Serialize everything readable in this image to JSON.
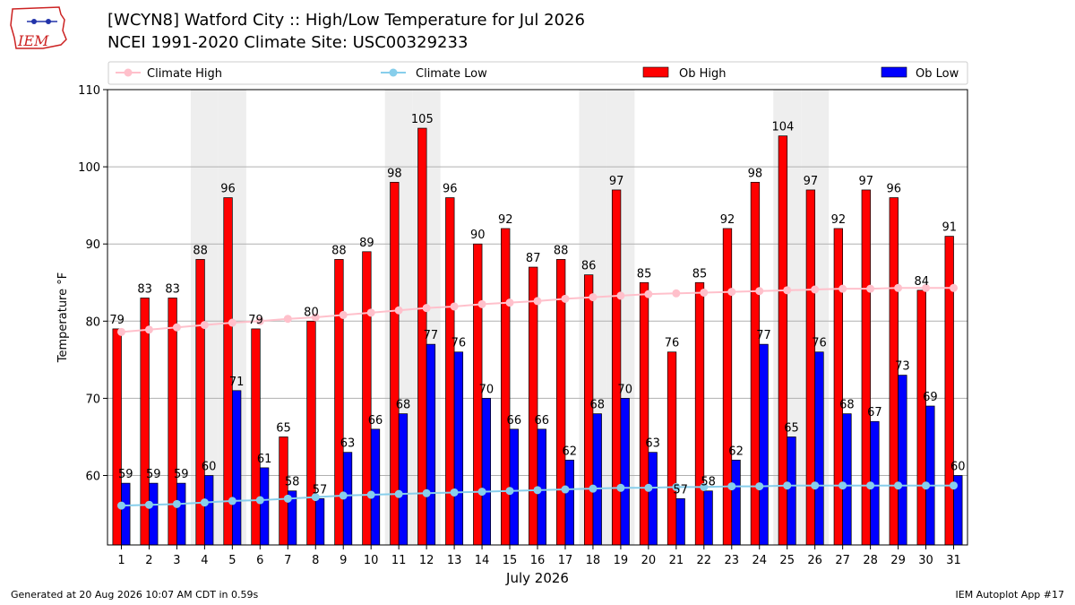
{
  "header": {
    "title": "[WCYN8] Watford City :: High/Low Temperature for Jul 2026",
    "subtitle": "NCEI 1991-2020 Climate Site: USC00329233",
    "logo_text": "IEM"
  },
  "footer": {
    "generated": "Generated at 20 Aug 2026 10:07 AM CDT in 0.59s",
    "app": "IEM Autoplot App #17"
  },
  "colors": {
    "ob_high": "#ff0000",
    "ob_low": "#0000ff",
    "climate_high": "#ffc0cb",
    "climate_low": "#87ceeb",
    "weekend_band": "#eeeeee"
  },
  "chart_data": {
    "type": "bar",
    "xlabel": "July 2026",
    "ylabel": "Temperature °F",
    "ylim": [
      51,
      110
    ],
    "yticks": [
      60,
      70,
      80,
      90,
      100,
      110
    ],
    "x": [
      1,
      2,
      3,
      4,
      5,
      6,
      7,
      8,
      9,
      10,
      11,
      12,
      13,
      14,
      15,
      16,
      17,
      18,
      19,
      20,
      21,
      22,
      23,
      24,
      25,
      26,
      27,
      28,
      29,
      30,
      31
    ],
    "weekend_days": [
      4,
      5,
      11,
      12,
      18,
      19,
      25,
      26
    ],
    "grid": "horizontal",
    "legend_placement": "top",
    "legend": [
      "Climate High",
      "Climate Low",
      "Ob High",
      "Ob Low"
    ],
    "series": [
      {
        "name": "Ob High",
        "kind": "bar",
        "values": [
          79,
          83,
          83,
          88,
          96,
          79,
          65,
          80,
          88,
          89,
          98,
          105,
          96,
          90,
          92,
          87,
          88,
          86,
          97,
          85,
          76,
          85,
          92,
          98,
          104,
          97,
          92,
          97,
          96,
          84,
          91
        ]
      },
      {
        "name": "Ob Low",
        "kind": "bar",
        "values": [
          59,
          59,
          59,
          60,
          71,
          61,
          58,
          57,
          63,
          66,
          68,
          77,
          76,
          70,
          66,
          66,
          62,
          68,
          70,
          63,
          57,
          58,
          62,
          77,
          65,
          76,
          68,
          67,
          73,
          69,
          60
        ]
      },
      {
        "name": "Climate High",
        "kind": "line",
        "values": [
          78.6,
          78.9,
          79.2,
          79.5,
          79.8,
          80.0,
          80.3,
          80.5,
          80.8,
          81.1,
          81.4,
          81.7,
          81.9,
          82.2,
          82.4,
          82.6,
          82.9,
          83.1,
          83.3,
          83.5,
          83.6,
          83.7,
          83.8,
          83.9,
          84.0,
          84.1,
          84.2,
          84.2,
          84.3,
          84.3,
          84.3
        ]
      },
      {
        "name": "Climate Low",
        "kind": "line",
        "values": [
          56.1,
          56.2,
          56.3,
          56.5,
          56.7,
          56.8,
          57.0,
          57.2,
          57.4,
          57.5,
          57.6,
          57.7,
          57.8,
          57.9,
          58.0,
          58.1,
          58.2,
          58.3,
          58.4,
          58.4,
          58.5,
          58.5,
          58.6,
          58.6,
          58.7,
          58.7,
          58.7,
          58.7,
          58.7,
          58.7,
          58.7
        ]
      }
    ]
  }
}
